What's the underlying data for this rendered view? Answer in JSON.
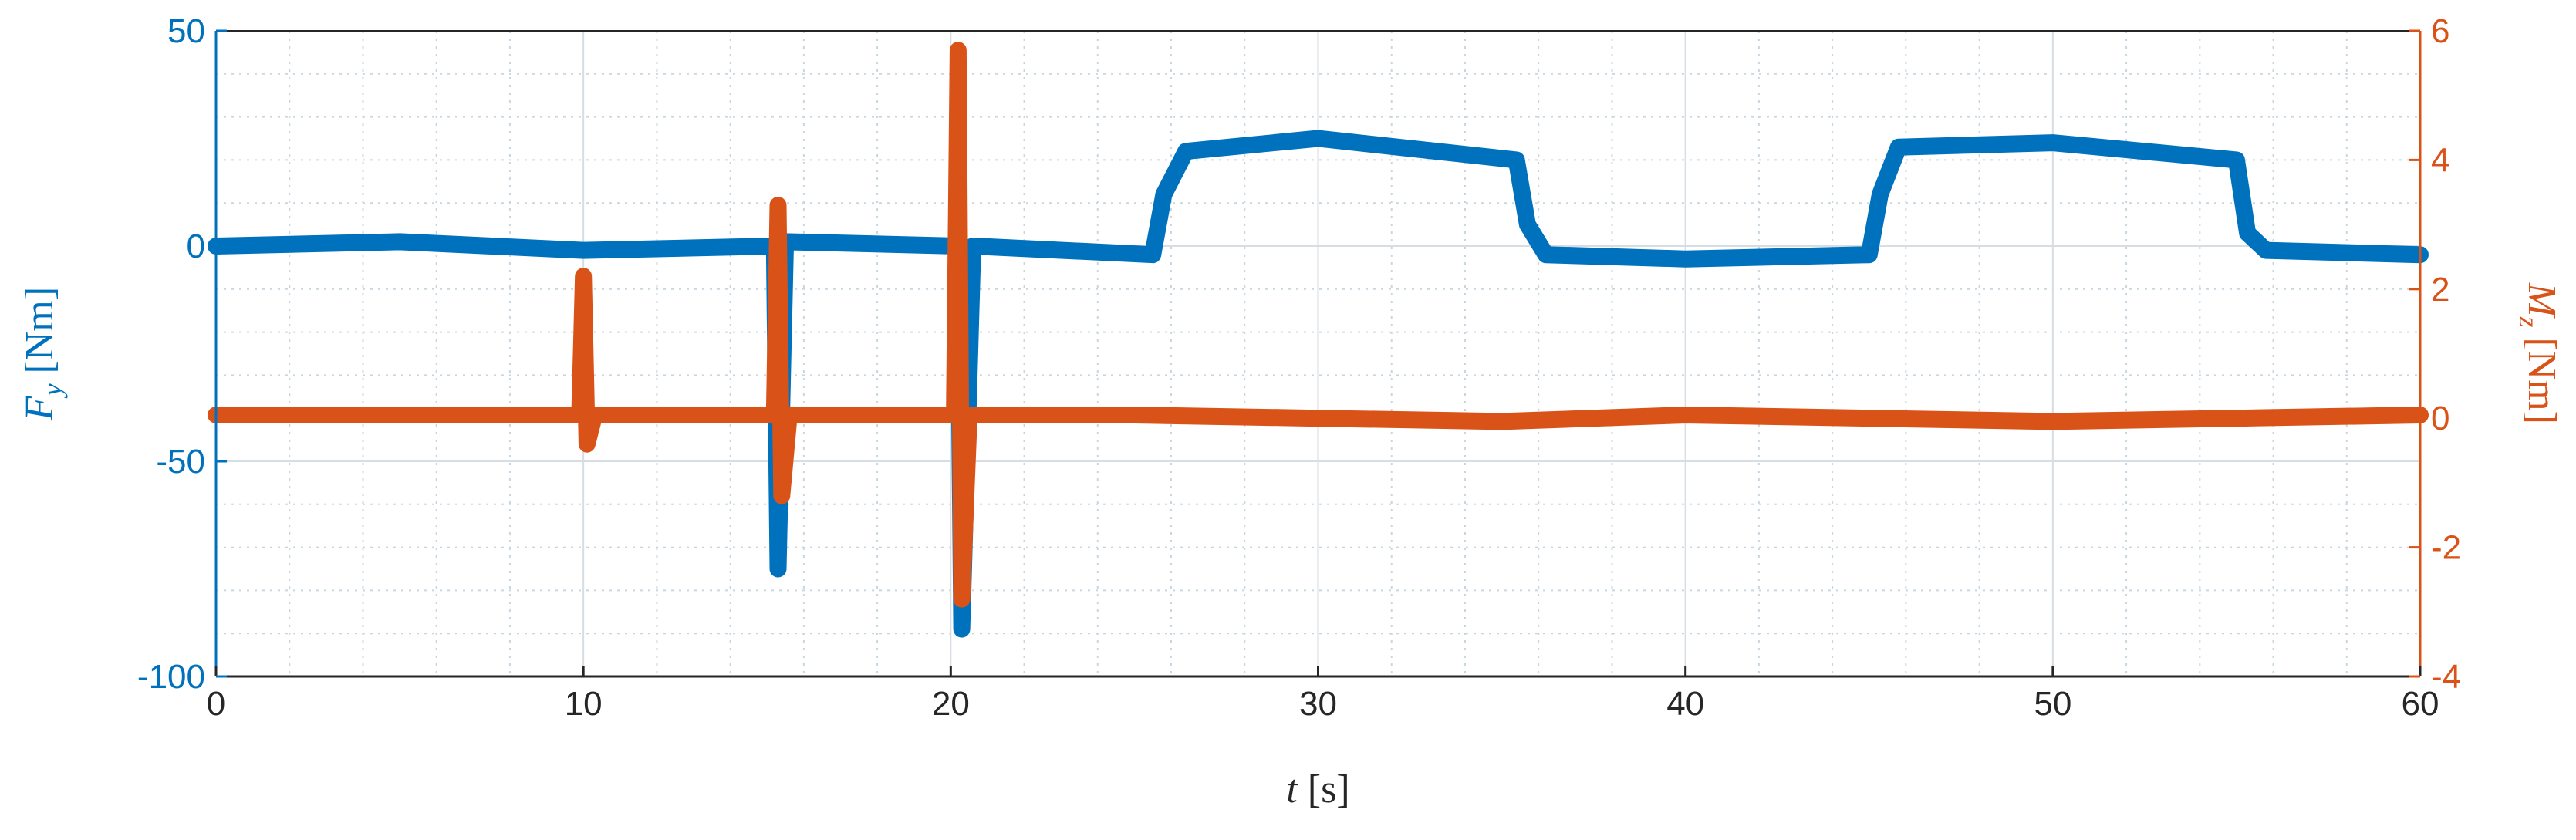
{
  "chart_data": {
    "type": "line",
    "xlabel": {
      "var": "t",
      "unit": "[s]"
    },
    "ylabel_left": {
      "var": "F",
      "sub": "y",
      "unit": "[Nm]"
    },
    "ylabel_right": {
      "var": "M",
      "sub": "z",
      "unit": "[Nm]"
    },
    "xlim": [
      0,
      60
    ],
    "ylim_left": [
      -100,
      50
    ],
    "ylim_right": [
      -4,
      6
    ],
    "x_ticks": [
      0,
      10,
      20,
      30,
      40,
      50,
      60
    ],
    "y_ticks_left": [
      -100,
      -50,
      0,
      50
    ],
    "y_ticks_right": [
      -4,
      -2,
      0,
      2,
      4,
      6
    ],
    "grid": true,
    "minor_grid": true,
    "colors": {
      "left": "#0072BD",
      "right": "#D95319"
    },
    "series": [
      {
        "axis": "left",
        "x": [
          0,
          5,
          10,
          15.2,
          15.3,
          15.5,
          20.2,
          20.3,
          20.6,
          25.5,
          25.8,
          26.4,
          30,
          35.4,
          35.7,
          36.2,
          40,
          45,
          45.3,
          45.8,
          50,
          55.0,
          55.3,
          55.8,
          60
        ],
        "y": [
          0,
          1,
          -1,
          0,
          -75,
          1,
          0,
          -89,
          0,
          -2,
          12,
          22,
          25,
          20,
          5,
          -2,
          -3,
          -2,
          12,
          23,
          24,
          20,
          3,
          -1,
          -2
        ]
      },
      {
        "axis": "right",
        "x": [
          0,
          9.9,
          10.0,
          10.1,
          10.3,
          15.2,
          15.3,
          15.4,
          15.6,
          20.1,
          20.2,
          20.3,
          20.5,
          25,
          30,
          35,
          40,
          45,
          50,
          55,
          60
        ],
        "y": [
          0.05,
          0.05,
          2.2,
          -0.4,
          0.05,
          0.05,
          3.3,
          -1.2,
          0.05,
          0.05,
          5.7,
          -2.8,
          0.05,
          0.05,
          0.0,
          -0.05,
          0.05,
          0.0,
          -0.05,
          0.0,
          0.05
        ]
      }
    ]
  }
}
